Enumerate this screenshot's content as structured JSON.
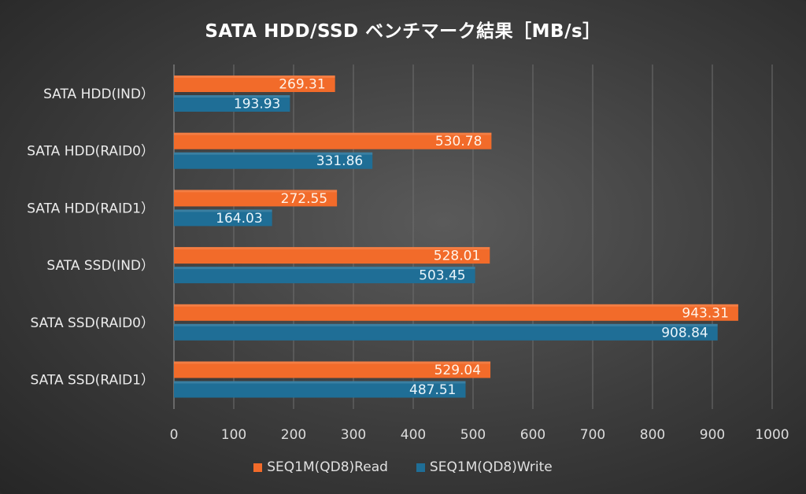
{
  "chart_data": {
    "type": "bar",
    "orientation": "horizontal",
    "title": "SATA HDD/SSD ベンチマーク結果［MB/s］",
    "categories": [
      "SATA HDD(IND）",
      "SATA HDD(RAID0）",
      "SATA HDD(RAID1）",
      "SATA SSD(IND）",
      "SATA SSD(RAID0）",
      "SATA SSD(RAID1）"
    ],
    "series": [
      {
        "name": "SEQ1M(QD8)Read",
        "color": "#f26b2a",
        "values": [
          269.31,
          530.78,
          272.55,
          528.01,
          943.31,
          529.04
        ],
        "labels": [
          "269.31",
          "530.78",
          "272.55",
          "528.01",
          "943.31",
          "529.04"
        ]
      },
      {
        "name": "SEQ1M(QD8)Write",
        "color": "#1f6e96",
        "values": [
          193.93,
          331.86,
          164.03,
          503.45,
          908.84,
          487.51
        ],
        "labels": [
          "193.93",
          "331.86",
          "164.03",
          "503.45",
          "908.84",
          "487.51"
        ]
      }
    ],
    "xlim": [
      0,
      1000
    ],
    "xticks": [
      "0",
      "100",
      "200",
      "300",
      "400",
      "500",
      "600",
      "700",
      "800",
      "900",
      "1000"
    ],
    "grid": true,
    "legend_position": "bottom"
  }
}
